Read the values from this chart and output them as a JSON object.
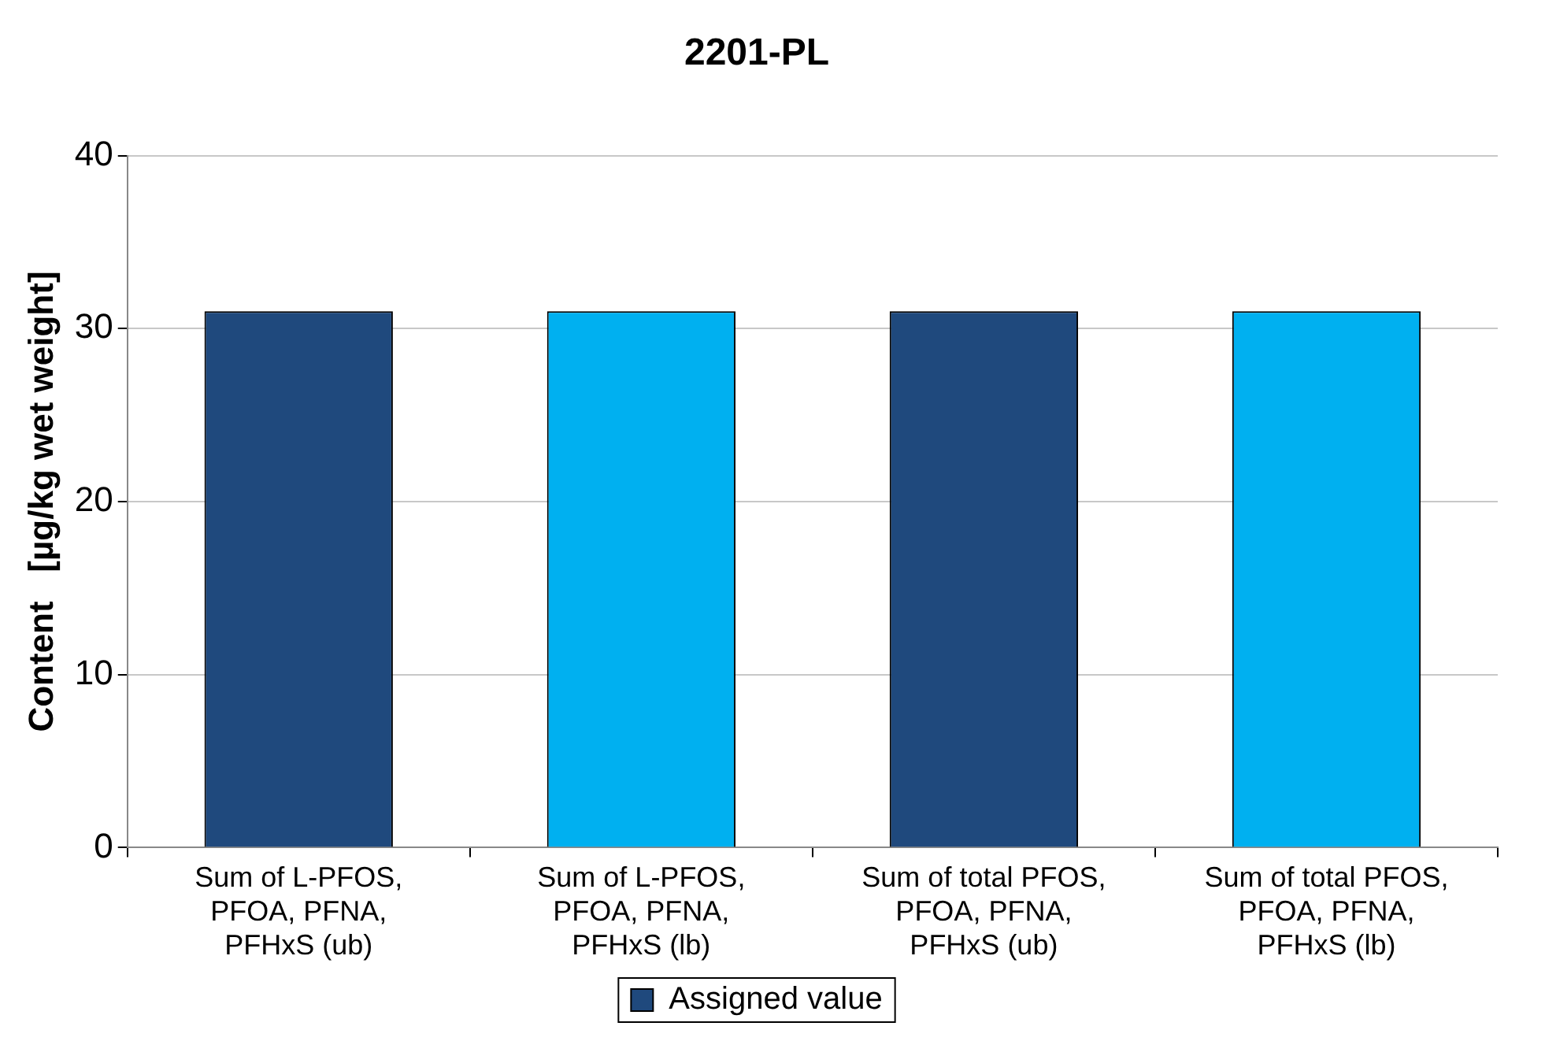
{
  "chart_data": {
    "type": "bar",
    "title": "2201-PL",
    "ylabel": "Content   [µg/kg wet weight]",
    "categories": [
      "Sum of L-PFOS, PFOA, PFNA, PFHxS (ub)",
      "Sum of L-PFOS, PFOA, PFNA, PFHxS (lb)",
      "Sum of total PFOS, PFOA, PFNA, PFHxS (ub)",
      "Sum of total PFOS, PFOA, PFNA, PFHxS (lb)"
    ],
    "series": [
      {
        "name": "Assigned value",
        "color": "#1f497d",
        "colors": [
          "#1f497d",
          "#00b0f0",
          "#1f497d",
          "#00b0f0"
        ],
        "values": [
          31,
          31,
          31,
          31
        ]
      }
    ],
    "ylim": [
      0,
      40
    ],
    "yticks": [
      0,
      10,
      20,
      30,
      40
    ],
    "grid": "y",
    "legend": "bottom"
  }
}
